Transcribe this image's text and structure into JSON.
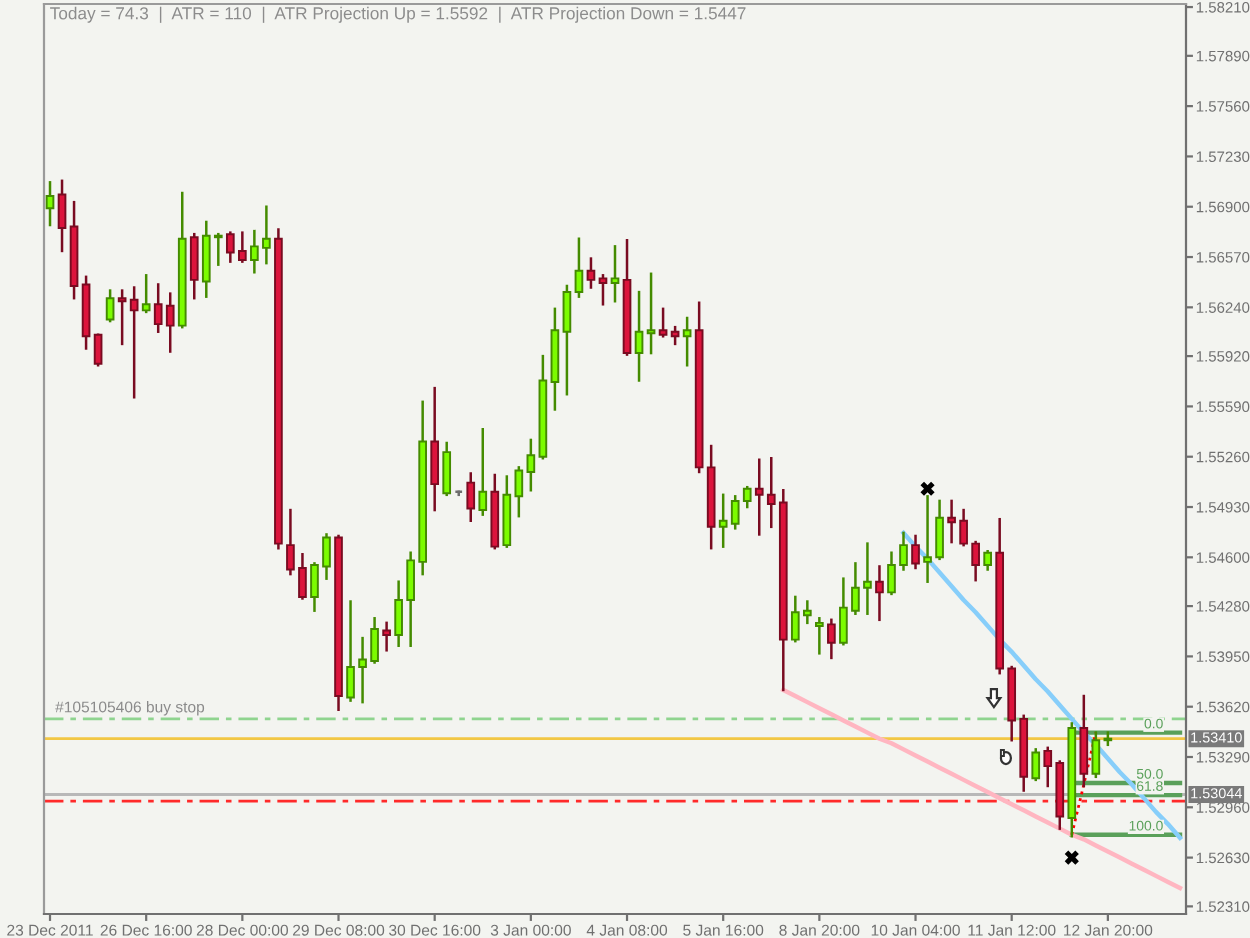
{
  "chart_data": {
    "type": "candlestick",
    "title": "Today = 74.3  |  ATR = 110  |  ATR Projection Up = 1.5592  |  ATR Projection Down = 1.5447",
    "categories": [
      "23 Dec 2011",
      null,
      null,
      null,
      null,
      null,
      null,
      null,
      "26 Dec 16:00",
      null,
      null,
      null,
      null,
      null,
      null,
      null,
      "28 Dec 00:00",
      null,
      null,
      null,
      null,
      null,
      null,
      null,
      "29 Dec 08:00",
      null,
      null,
      null,
      null,
      null,
      null,
      null,
      "30 Dec 16:00",
      null,
      null,
      null,
      null,
      null,
      null,
      null,
      "3 Jan 00:00",
      null,
      null,
      null,
      null,
      null,
      null,
      null,
      "4 Jan 08:00",
      null,
      null,
      null,
      null,
      null,
      null,
      null,
      "5 Jan 16:00",
      null,
      null,
      null,
      null,
      null,
      null,
      null,
      "8 Jan 20:00",
      null,
      null,
      null,
      null,
      null,
      null,
      null,
      "10 Jan 04:00",
      null,
      null,
      null,
      null,
      null,
      null,
      null,
      "11 Jan 12:00",
      null,
      null,
      null,
      null,
      null,
      null,
      null,
      "12 Jan 20:00",
      null,
      null,
      null,
      null,
      null,
      null
    ],
    "ohlc": [
      [
        1.5689,
        1.5706,
        1.5678,
        1.5697
      ],
      [
        1.5698,
        1.5707,
        1.5661,
        1.5676
      ],
      [
        1.5677,
        1.5693,
        1.563,
        1.5638
      ],
      [
        1.5639,
        1.5644,
        1.5597,
        1.5605
      ],
      [
        1.5606,
        1.5606,
        1.5586,
        1.5587
      ],
      [
        1.5616,
        1.5635,
        1.5615,
        1.563
      ],
      [
        1.563,
        1.5635,
        1.56,
        1.5628
      ],
      [
        1.5629,
        1.5637,
        1.5565,
        1.5622
      ],
      [
        1.5622,
        1.5645,
        1.5621,
        1.5626
      ],
      [
        1.5626,
        1.5639,
        1.5608,
        1.5613
      ],
      [
        1.5625,
        1.5633,
        1.5595,
        1.5612
      ],
      [
        1.5612,
        1.5699,
        1.5611,
        1.5669
      ],
      [
        1.567,
        1.5672,
        1.563,
        1.5642
      ],
      [
        1.5641,
        1.568,
        1.5631,
        1.5671
      ],
      [
        1.567,
        1.5672,
        1.5652,
        1.5671
      ],
      [
        1.5672,
        1.5673,
        1.5654,
        1.566
      ],
      [
        1.5661,
        1.5673,
        1.5654,
        1.5655
      ],
      [
        1.5655,
        1.5674,
        1.5647,
        1.5664
      ],
      [
        1.5663,
        1.569,
        1.5653,
        1.5669
      ],
      [
        1.5669,
        1.5675,
        1.5466,
        1.5469
      ],
      [
        1.5468,
        1.5491,
        1.5449,
        1.5452
      ],
      [
        1.5453,
        1.5462,
        1.5433,
        1.5434
      ],
      [
        1.5434,
        1.5456,
        1.5425,
        1.5455
      ],
      [
        1.5454,
        1.5475,
        1.5446,
        1.5473
      ],
      [
        1.5473,
        1.5474,
        1.536,
        1.5369
      ],
      [
        1.5368,
        1.5431,
        1.5366,
        1.5388
      ],
      [
        1.5388,
        1.5407,
        1.5365,
        1.5393
      ],
      [
        1.5392,
        1.542,
        1.5391,
        1.5413
      ],
      [
        1.5412,
        1.5417,
        1.5399,
        1.5409
      ],
      [
        1.5409,
        1.5444,
        1.5402,
        1.5432
      ],
      [
        1.5432,
        1.5463,
        1.5402,
        1.5458
      ],
      [
        1.5457,
        1.5562,
        1.5449,
        1.5536
      ],
      [
        1.5536,
        1.5571,
        1.5491,
        1.5508
      ],
      [
        1.5502,
        1.5535,
        1.5501,
        1.5529
      ],
      [
        1.5503,
        1.5503,
        1.5501,
        1.5503
      ],
      [
        1.5509,
        1.5515,
        1.5484,
        1.5492
      ],
      [
        1.5491,
        1.5544,
        1.5488,
        1.5503
      ],
      [
        1.5503,
        1.5514,
        1.5466,
        1.5467
      ],
      [
        1.5468,
        1.5513,
        1.5467,
        1.5501
      ],
      [
        1.55,
        1.5519,
        1.5487,
        1.5517
      ],
      [
        1.5516,
        1.5537,
        1.5504,
        1.5527
      ],
      [
        1.5526,
        1.5592,
        1.5525,
        1.5576
      ],
      [
        1.5575,
        1.5623,
        1.5557,
        1.5609
      ],
      [
        1.5608,
        1.5638,
        1.5567,
        1.5634
      ],
      [
        1.5634,
        1.5669,
        1.5631,
        1.5648
      ],
      [
        1.5648,
        1.5656,
        1.5637,
        1.5642
      ],
      [
        1.5643,
        1.5645,
        1.5626,
        1.564
      ],
      [
        1.564,
        1.5664,
        1.5628,
        1.5643
      ],
      [
        1.5642,
        1.5668,
        1.5593,
        1.5594
      ],
      [
        1.5594,
        1.5634,
        1.5576,
        1.5608
      ],
      [
        1.5607,
        1.5646,
        1.5594,
        1.5609
      ],
      [
        1.5609,
        1.5623,
        1.5605,
        1.5606
      ],
      [
        1.5608,
        1.5611,
        1.56,
        1.5605
      ],
      [
        1.5605,
        1.5617,
        1.5586,
        1.5609
      ],
      [
        1.5609,
        1.5627,
        1.5516,
        1.5519
      ],
      [
        1.5519,
        1.5533,
        1.5466,
        1.548
      ],
      [
        1.548,
        1.5501,
        1.5467,
        1.5484
      ],
      [
        1.5482,
        1.55,
        1.5479,
        1.5497
      ],
      [
        1.5497,
        1.5506,
        1.5493,
        1.5505
      ],
      [
        1.5505,
        1.5524,
        1.5475,
        1.5501
      ],
      [
        1.5501,
        1.5525,
        1.548,
        1.5495
      ],
      [
        1.5496,
        1.5504,
        1.5373,
        1.5406
      ],
      [
        1.5406,
        1.5434,
        1.5405,
        1.5424
      ],
      [
        1.5422,
        1.5431,
        1.5417,
        1.5425
      ],
      [
        1.5415,
        1.542,
        1.5397,
        1.5417
      ],
      [
        1.5416,
        1.5419,
        1.5394,
        1.5404
      ],
      [
        1.5404,
        1.5446,
        1.5403,
        1.5427
      ],
      [
        1.5425,
        1.5456,
        1.5423,
        1.544
      ],
      [
        1.544,
        1.5469,
        1.5423,
        1.5444
      ],
      [
        1.5444,
        1.5454,
        1.5419,
        1.5437
      ],
      [
        1.5437,
        1.5463,
        1.5436,
        1.5455
      ],
      [
        1.5455,
        1.5476,
        1.5452,
        1.5468
      ],
      [
        1.5468,
        1.5474,
        1.5453,
        1.5456
      ],
      [
        1.5457,
        1.55,
        1.5444,
        1.546
      ],
      [
        1.546,
        1.5497,
        1.5459,
        1.5486
      ],
      [
        1.5486,
        1.5497,
        1.547,
        1.5483
      ],
      [
        1.5484,
        1.5491,
        1.5468,
        1.5469
      ],
      [
        1.5469,
        1.547,
        1.5445,
        1.5455
      ],
      [
        1.5455,
        1.5464,
        1.5452,
        1.5463
      ],
      [
        1.5463,
        1.5485,
        1.5384,
        1.5387
      ],
      [
        1.5387,
        1.5388,
        1.534,
        1.5353
      ],
      [
        1.5354,
        1.5356,
        1.5307,
        1.5316
      ],
      [
        1.5315,
        1.5334,
        1.5314,
        1.5332
      ],
      [
        1.5333,
        1.5335,
        1.531,
        1.5323
      ],
      [
        1.5325,
        1.5326,
        1.5282,
        1.529
      ],
      [
        1.5289,
        1.5351,
        1.5277,
        1.5348
      ],
      [
        1.5348,
        1.5369,
        1.531,
        1.5318
      ],
      [
        1.5318,
        1.5345,
        1.5316,
        1.534
      ],
      [
        1.534,
        1.5345,
        1.5337,
        1.5341
      ],
      null,
      null,
      null,
      null,
      null,
      null
    ],
    "colors": [
      "#7cfc00",
      "#dc143c",
      "#dc143c",
      "#dc143c",
      "#dc143c",
      "#7cfc00",
      "#dc143c",
      "#dc143c",
      "#7cfc00",
      "#dc143c",
      "#dc143c",
      "#7cfc00",
      "#dc143c",
      "#7cfc00",
      "#7cfc00",
      "#dc143c",
      "#dc143c",
      "#7cfc00",
      "#7cfc00",
      "#dc143c",
      "#dc143c",
      "#dc143c",
      "#7cfc00",
      "#7cfc00",
      "#dc143c",
      "#7cfc00",
      "#7cfc00",
      "#7cfc00",
      "#dc143c",
      "#7cfc00",
      "#7cfc00",
      "#7cfc00",
      "#dc143c",
      "#7cfc00",
      "#6e6e6e",
      "#dc143c",
      "#7cfc00",
      "#dc143c",
      "#7cfc00",
      "#7cfc00",
      "#7cfc00",
      "#7cfc00",
      "#7cfc00",
      "#7cfc00",
      "#7cfc00",
      "#dc143c",
      "#dc143c",
      "#7cfc00",
      "#dc143c",
      "#7cfc00",
      "#7cfc00",
      "#dc143c",
      "#dc143c",
      "#7cfc00",
      "#dc143c",
      "#dc143c",
      "#7cfc00",
      "#7cfc00",
      "#7cfc00",
      "#dc143c",
      "#dc143c",
      "#dc143c",
      "#7cfc00",
      "#7cfc00",
      "#7cfc00",
      "#dc143c",
      "#7cfc00",
      "#7cfc00",
      "#7cfc00",
      "#dc143c",
      "#7cfc00",
      "#7cfc00",
      "#dc143c",
      "#7cfc00",
      "#7cfc00",
      "#dc143c",
      "#dc143c",
      "#dc143c",
      "#7cfc00",
      "#dc143c",
      "#dc143c",
      "#dc143c",
      "#7cfc00",
      "#dc143c",
      "#dc143c",
      "#7cfc00",
      "#dc143c",
      "#7cfc00",
      "#7cfc00",
      null,
      null,
      null,
      null,
      null,
      null
    ],
    "ylim": [
      1.5226,
      1.5823
    ],
    "yticks": [
      {
        "value": 1.5821,
        "label": "1.58210"
      },
      {
        "value": 1.5789,
        "label": "1.57890"
      },
      {
        "value": 1.5756,
        "label": "1.57560"
      },
      {
        "value": 1.5723,
        "label": "1.57230"
      },
      {
        "value": 1.569,
        "label": "1.56900"
      },
      {
        "value": 1.5657,
        "label": "1.56570"
      },
      {
        "value": 1.5624,
        "label": "1.56240"
      },
      {
        "value": 1.5592,
        "label": "1.55920"
      },
      {
        "value": 1.5559,
        "label": "1.55590"
      },
      {
        "value": 1.5526,
        "label": "1.55260"
      },
      {
        "value": 1.5493,
        "label": "1.54930"
      },
      {
        "value": 1.546,
        "label": "1.54600"
      },
      {
        "value": 1.5428,
        "label": "1.54280"
      },
      {
        "value": 1.5395,
        "label": "1.53950"
      },
      {
        "value": 1.5362,
        "label": "1.53620"
      },
      {
        "value": 1.5329,
        "label": "1.53290"
      },
      {
        "value": 1.5296,
        "label": "1.52960"
      },
      {
        "value": 1.5263,
        "label": "1.52630"
      },
      {
        "value": 1.5231,
        "label": "1.52310"
      }
    ],
    "series": [
      {
        "type": "line",
        "color": "#ffb6c1",
        "values": [
          null,
          null,
          null,
          null,
          null,
          null,
          null,
          null,
          null,
          null,
          null,
          null,
          null,
          null,
          null,
          null,
          null,
          null,
          null,
          null,
          null,
          null,
          null,
          null,
          null,
          null,
          null,
          null,
          null,
          null,
          null,
          null,
          null,
          null,
          null,
          null,
          null,
          null,
          null,
          null,
          null,
          null,
          null,
          null,
          null,
          null,
          null,
          null,
          null,
          null,
          null,
          null,
          null,
          null,
          null,
          null,
          null,
          null,
          null,
          null,
          null,
          1.5373,
          1.5369,
          1.5365,
          1.5361,
          1.5357,
          1.5353,
          1.5349,
          1.5345,
          1.5341,
          1.5338,
          1.5334,
          1.533,
          1.5326,
          1.5322,
          1.5318,
          1.5314,
          1.531,
          1.5306,
          1.5302,
          1.5298,
          1.5294,
          1.529,
          1.5286,
          1.5282,
          1.5278,
          1.5275,
          1.5271,
          1.5267,
          1.5263,
          1.5259,
          1.5255,
          1.5251,
          1.5247,
          1.5243
        ]
      },
      {
        "type": "line",
        "color": "#87cefa",
        "values": [
          null,
          null,
          null,
          null,
          null,
          null,
          null,
          null,
          null,
          null,
          null,
          null,
          null,
          null,
          null,
          null,
          null,
          null,
          null,
          null,
          null,
          null,
          null,
          null,
          null,
          null,
          null,
          null,
          null,
          null,
          null,
          null,
          null,
          null,
          null,
          null,
          null,
          null,
          null,
          null,
          null,
          null,
          null,
          null,
          null,
          null,
          null,
          null,
          null,
          null,
          null,
          null,
          null,
          null,
          null,
          null,
          null,
          null,
          null,
          null,
          null,
          null,
          null,
          null,
          null,
          null,
          null,
          null,
          null,
          null,
          null,
          1.5476,
          1.5467,
          1.5459,
          1.545,
          1.5441,
          1.5432,
          1.5424,
          1.5415,
          1.5406,
          1.5398,
          1.5389,
          1.538,
          1.5372,
          1.5363,
          1.5354,
          1.5345,
          1.5337,
          1.5328,
          1.5319,
          1.5311,
          1.5302,
          1.5293,
          1.5285,
          1.5276
        ]
      },
      {
        "type": "line",
        "name": "0.0",
        "color": "#5aa05a",
        "values": [
          null,
          null,
          null,
          null,
          null,
          null,
          null,
          null,
          null,
          null,
          null,
          null,
          null,
          null,
          null,
          null,
          null,
          null,
          null,
          null,
          null,
          null,
          null,
          null,
          null,
          null,
          null,
          null,
          null,
          null,
          null,
          null,
          null,
          null,
          null,
          null,
          null,
          null,
          null,
          null,
          null,
          null,
          null,
          null,
          null,
          null,
          null,
          null,
          null,
          null,
          null,
          null,
          null,
          null,
          null,
          null,
          null,
          null,
          null,
          null,
          null,
          null,
          null,
          null,
          null,
          null,
          null,
          null,
          null,
          null,
          null,
          null,
          null,
          null,
          null,
          null,
          null,
          null,
          null,
          null,
          null,
          null,
          null,
          null,
          null,
          1.5345,
          1.5345,
          1.5345,
          1.5345,
          1.5345,
          1.5345,
          1.5345,
          1.5345,
          1.5345,
          1.5345
        ]
      },
      {
        "type": "line",
        "name": "50.0",
        "color": "#5aa05a",
        "values": [
          null,
          null,
          null,
          null,
          null,
          null,
          null,
          null,
          null,
          null,
          null,
          null,
          null,
          null,
          null,
          null,
          null,
          null,
          null,
          null,
          null,
          null,
          null,
          null,
          null,
          null,
          null,
          null,
          null,
          null,
          null,
          null,
          null,
          null,
          null,
          null,
          null,
          null,
          null,
          null,
          null,
          null,
          null,
          null,
          null,
          null,
          null,
          null,
          null,
          null,
          null,
          null,
          null,
          null,
          null,
          null,
          null,
          null,
          null,
          null,
          null,
          null,
          null,
          null,
          null,
          null,
          null,
          null,
          null,
          null,
          null,
          null,
          null,
          null,
          null,
          null,
          null,
          null,
          null,
          null,
          null,
          null,
          null,
          null,
          null,
          1.5312,
          1.5312,
          1.5312,
          1.5312,
          1.5312,
          1.5312,
          1.5312,
          1.5312,
          1.5312,
          1.5312
        ]
      },
      {
        "type": "line",
        "name": "61.8",
        "color": "#5aa05a",
        "values": [
          null,
          null,
          null,
          null,
          null,
          null,
          null,
          null,
          null,
          null,
          null,
          null,
          null,
          null,
          null,
          null,
          null,
          null,
          null,
          null,
          null,
          null,
          null,
          null,
          null,
          null,
          null,
          null,
          null,
          null,
          null,
          null,
          null,
          null,
          null,
          null,
          null,
          null,
          null,
          null,
          null,
          null,
          null,
          null,
          null,
          null,
          null,
          null,
          null,
          null,
          null,
          null,
          null,
          null,
          null,
          null,
          null,
          null,
          null,
          null,
          null,
          null,
          null,
          null,
          null,
          null,
          null,
          null,
          null,
          null,
          null,
          null,
          null,
          null,
          null,
          null,
          null,
          null,
          null,
          null,
          null,
          null,
          null,
          null,
          null,
          1.5304,
          1.5304,
          1.5304,
          1.5304,
          1.5304,
          1.5304,
          1.5304,
          1.5304,
          1.5304,
          1.5304
        ]
      },
      {
        "type": "line",
        "name": "100.0",
        "color": "#5aa05a",
        "values": [
          null,
          null,
          null,
          null,
          null,
          null,
          null,
          null,
          null,
          null,
          null,
          null,
          null,
          null,
          null,
          null,
          null,
          null,
          null,
          null,
          null,
          null,
          null,
          null,
          null,
          null,
          null,
          null,
          null,
          null,
          null,
          null,
          null,
          null,
          null,
          null,
          null,
          null,
          null,
          null,
          null,
          null,
          null,
          null,
          null,
          null,
          null,
          null,
          null,
          null,
          null,
          null,
          null,
          null,
          null,
          null,
          null,
          null,
          null,
          null,
          null,
          null,
          null,
          null,
          null,
          null,
          null,
          null,
          null,
          null,
          null,
          null,
          null,
          null,
          null,
          null,
          null,
          null,
          null,
          null,
          null,
          null,
          null,
          null,
          null,
          1.5278,
          1.5278,
          1.5278,
          1.5278,
          1.5278,
          1.5278,
          1.5278,
          1.5278,
          1.5278,
          1.5278
        ]
      },
      {
        "type": "line",
        "color": "#ff0000",
        "line_style": "dotted",
        "values": [
          null,
          null,
          null,
          null,
          null,
          null,
          null,
          null,
          null,
          null,
          null,
          null,
          null,
          null,
          null,
          null,
          null,
          null,
          null,
          null,
          null,
          null,
          null,
          null,
          null,
          null,
          null,
          null,
          null,
          null,
          null,
          null,
          null,
          null,
          null,
          null,
          null,
          null,
          null,
          null,
          null,
          null,
          null,
          null,
          null,
          null,
          null,
          null,
          null,
          null,
          null,
          null,
          null,
          null,
          null,
          null,
          null,
          null,
          null,
          null,
          null,
          null,
          null,
          null,
          null,
          null,
          null,
          null,
          null,
          null,
          null,
          null,
          null,
          null,
          null,
          null,
          null,
          null,
          null,
          null,
          null,
          null,
          null,
          null,
          null,
          1.5278,
          1.5311,
          1.5345,
          null,
          null,
          null,
          null,
          null,
          null,
          null
        ]
      },
      {
        "type": "scatter",
        "color": "#000000",
        "marker": "cross",
        "values": [
          null,
          null,
          null,
          null,
          null,
          null,
          null,
          null,
          null,
          null,
          null,
          null,
          null,
          null,
          null,
          null,
          null,
          null,
          null,
          null,
          null,
          null,
          null,
          null,
          null,
          null,
          null,
          null,
          null,
          null,
          null,
          null,
          null,
          null,
          null,
          null,
          null,
          null,
          null,
          null,
          null,
          null,
          null,
          null,
          null,
          null,
          null,
          null,
          null,
          null,
          null,
          null,
          null,
          null,
          null,
          null,
          null,
          null,
          null,
          null,
          null,
          null,
          null,
          null,
          null,
          null,
          null,
          null,
          null,
          null,
          null,
          null,
          null,
          1.5505,
          null,
          null,
          null,
          null,
          null,
          null,
          null,
          null,
          null,
          null,
          null,
          1.5263,
          null,
          null,
          null,
          null,
          null,
          null,
          null,
          null,
          null
        ]
      }
    ],
    "ref_lines": [
      {
        "axis": "y",
        "value": 1.5354,
        "label": "#105105406 buy stop",
        "color": "#8fd48f",
        "line_style": "dashed"
      },
      {
        "axis": "y",
        "value": 1.5341,
        "label": "1.53410",
        "color": "#f2c744",
        "line_style": "solid"
      },
      {
        "axis": "y",
        "value": 1.53044,
        "label": "1.53044",
        "color": "#b8b8b8",
        "line_style": "solid"
      },
      {
        "axis": "y",
        "value": 1.53,
        "color": "#ff2a2a",
        "line_style": "dashed"
      }
    ]
  }
}
